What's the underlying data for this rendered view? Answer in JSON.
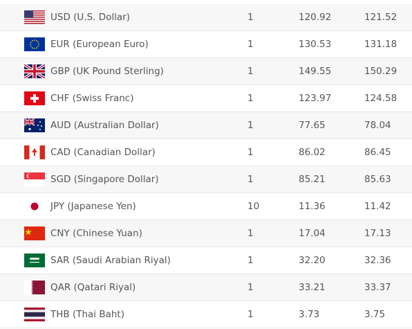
{
  "table": {
    "rows": [
      [
        "USD (U.S. Dollar)",
        "1",
        "120.92",
        "121.52"
      ],
      [
        "EUR (European Euro)",
        "1",
        "130.53",
        "131.18"
      ],
      [
        "GBP (UK Pound Sterling)",
        "1",
        "149.55",
        "150.29"
      ],
      [
        "CHF (Swiss Franc)",
        "1",
        "123.97",
        "124.58"
      ],
      [
        "AUD (Australian Dollar)",
        "1",
        "77.65",
        "78.04"
      ],
      [
        "CAD (Canadian Dollar)",
        "1",
        "86.02",
        "86.45"
      ],
      [
        "SGD (Singapore Dollar)",
        "1",
        "85.21",
        "85.63"
      ],
      [
        "JPY (Japanese Yen)",
        "10",
        "11.36",
        "11.42"
      ],
      [
        "CNY (Chinese Yuan)",
        "1",
        "17.04",
        "17.13"
      ],
      [
        "SAR (Saudi Arabian Riyal)",
        "1",
        "32.20",
        "32.36"
      ],
      [
        "QAR (Qatari Riyal)",
        "1",
        "33.21",
        "33.37"
      ],
      [
        "THB (Thai Baht)",
        "1",
        "3.73",
        "3.75"
      ]
    ]
  }
}
